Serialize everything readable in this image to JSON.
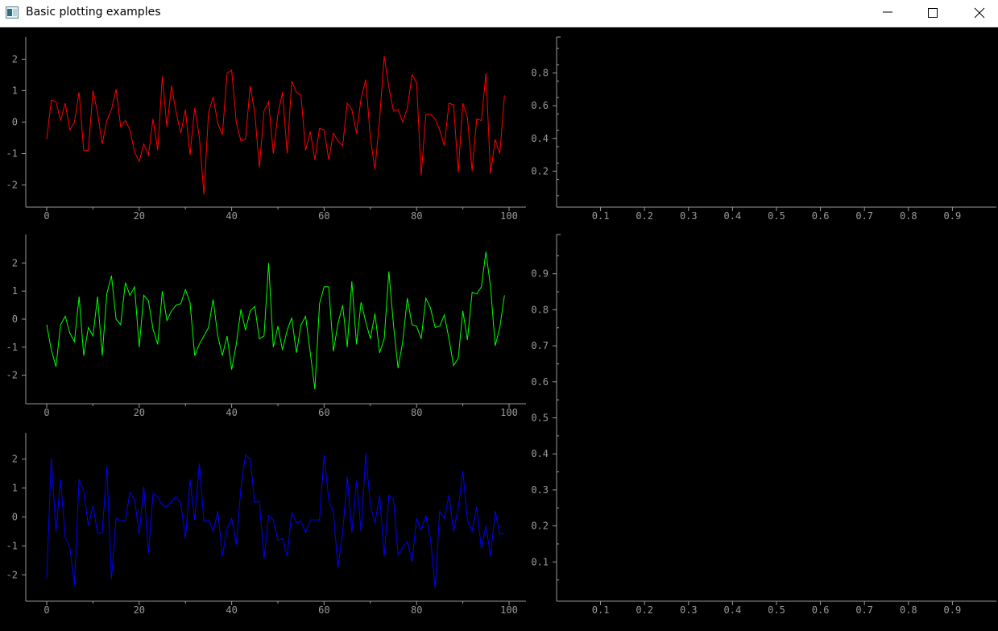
{
  "window": {
    "title": "Basic plotting examples"
  },
  "colors": {
    "background": "#000000",
    "axis": "#9a9a9a",
    "red": "#ff0000",
    "green": "#00ff00",
    "blue": "#0000ff"
  },
  "chart_data": [
    {
      "type": "line",
      "xlim": [
        0,
        100
      ],
      "ylim": [
        -2.6,
        2.6
      ],
      "x_ticks": [
        "0",
        "20",
        "40",
        "60",
        "80",
        "100"
      ],
      "y_ticks": [
        "2",
        "1",
        "0",
        "-1",
        "-2"
      ],
      "series": [
        {
          "color": "#ff0000",
          "x": [
            0,
            1,
            2,
            3,
            4,
            5,
            6,
            7,
            8,
            9,
            10,
            11,
            12,
            13,
            14,
            15,
            16,
            17,
            18,
            19,
            20,
            21,
            22,
            23,
            24,
            25,
            26,
            27,
            28,
            29,
            30,
            31,
            32,
            33,
            34,
            35,
            36,
            37,
            38,
            39,
            40,
            41,
            42,
            43,
            44,
            45,
            46,
            47,
            48,
            49,
            50,
            51,
            52,
            53,
            54,
            55,
            56,
            57,
            58,
            59,
            60,
            61,
            62,
            63,
            64,
            65,
            66,
            67,
            68,
            69,
            70,
            71,
            72,
            73,
            74,
            75,
            76,
            77,
            78,
            79,
            80,
            81,
            82,
            83,
            84,
            85,
            86,
            87,
            88,
            89,
            90,
            91,
            92,
            93,
            94,
            95,
            96,
            97,
            98,
            99
          ],
          "values": [
            -0.55,
            0.7,
            0.65,
            0.05,
            0.6,
            -0.25,
            0.0,
            0.95,
            -0.9,
            -0.9,
            1.0,
            0.3,
            -0.7,
            0.05,
            0.4,
            1.05,
            -0.15,
            0.05,
            -0.25,
            -0.95,
            -1.25,
            -0.7,
            -1.05,
            0.1,
            -0.9,
            1.45,
            -0.15,
            1.15,
            0.3,
            -0.35,
            0.4,
            -1.05,
            0.45,
            -0.45,
            -2.3,
            0.3,
            0.8,
            -0.05,
            -0.4,
            1.55,
            1.65,
            0.0,
            -0.6,
            -0.55,
            1.15,
            0.3,
            -1.45,
            0.35,
            0.65,
            -1.0,
            0.25,
            0.95,
            -1.0,
            1.3,
            0.95,
            0.85,
            -0.9,
            -0.3,
            -1.2,
            -0.2,
            -0.25,
            -1.2,
            -0.35,
            -0.6,
            -0.75,
            0.6,
            0.4,
            -0.35,
            0.75,
            1.35,
            -0.5,
            -1.5,
            0.1,
            2.1,
            1.1,
            0.35,
            0.4,
            0.0,
            0.45,
            1.5,
            1.25,
            -1.7,
            0.25,
            0.25,
            0.1,
            -0.25,
            -0.75,
            0.6,
            0.55,
            -1.6,
            0.6,
            0.15,
            -1.55,
            0.1,
            0.05,
            1.55,
            -1.65,
            -0.55,
            -1.0,
            0.85
          ]
        }
      ]
    },
    {
      "type": "line",
      "xlim": [
        0,
        100
      ],
      "ylim": [
        -2.9,
        2.9
      ],
      "x_ticks": [
        "0",
        "20",
        "40",
        "60",
        "80",
        "100"
      ],
      "y_ticks": [
        "2",
        "1",
        "0",
        "-1",
        "-2"
      ],
      "series": [
        {
          "color": "#00ff00",
          "x": [
            0,
            1,
            2,
            3,
            4,
            5,
            6,
            7,
            8,
            9,
            10,
            11,
            12,
            13,
            14,
            15,
            16,
            17,
            18,
            19,
            20,
            21,
            22,
            23,
            24,
            25,
            26,
            27,
            28,
            29,
            30,
            31,
            32,
            33,
            34,
            35,
            36,
            37,
            38,
            39,
            40,
            41,
            42,
            43,
            44,
            45,
            46,
            47,
            48,
            49,
            50,
            51,
            52,
            53,
            54,
            55,
            56,
            57,
            58,
            59,
            60,
            61,
            62,
            63,
            64,
            65,
            66,
            67,
            68,
            69,
            70,
            71,
            72,
            73,
            74,
            75,
            76,
            77,
            78,
            79,
            80,
            81,
            82,
            83,
            84,
            85,
            86,
            87,
            88,
            89,
            90,
            91,
            92,
            93,
            94,
            95,
            96,
            97,
            98,
            99
          ],
          "values": [
            -0.2,
            -1.1,
            -1.7,
            -0.2,
            0.1,
            -0.5,
            -0.8,
            0.8,
            -1.3,
            -0.3,
            -0.6,
            0.8,
            -1.3,
            0.9,
            1.55,
            0.0,
            -0.2,
            1.3,
            0.85,
            1.15,
            -1.0,
            0.85,
            0.65,
            -0.35,
            -0.9,
            1.0,
            -0.05,
            0.3,
            0.5,
            0.55,
            1.05,
            0.6,
            -1.3,
            -0.9,
            -0.6,
            -0.3,
            0.7,
            -0.6,
            -1.3,
            -0.6,
            -1.8,
            -0.9,
            0.35,
            -0.4,
            0.3,
            0.45,
            -0.7,
            -0.6,
            2.0,
            -1.0,
            -0.25,
            -1.1,
            -0.4,
            0.05,
            -1.2,
            -0.2,
            0.1,
            -1.2,
            -2.5,
            0.55,
            1.15,
            1.15,
            -1.15,
            -0.15,
            0.5,
            -1.0,
            1.35,
            -0.9,
            0.6,
            -0.1,
            -0.7,
            0.2,
            -1.2,
            -0.7,
            1.7,
            -0.2,
            -1.75,
            -0.8,
            0.75,
            -0.2,
            -0.25,
            -0.7,
            0.75,
            0.4,
            -0.3,
            -0.25,
            0.15,
            -0.7,
            -1.65,
            -1.4,
            0.3,
            -0.75,
            0.95,
            0.9,
            1.15,
            2.4,
            1.15,
            -0.95,
            -0.3,
            0.85
          ]
        }
      ]
    },
    {
      "type": "line",
      "xlim": [
        0,
        100
      ],
      "ylim": [
        -2.8,
        2.8
      ],
      "x_ticks": [
        "0",
        "20",
        "40",
        "60",
        "80",
        "100"
      ],
      "y_ticks": [
        "2",
        "1",
        "0",
        "-1",
        "-2"
      ],
      "series": [
        {
          "color": "#0000ff",
          "x": [
            0,
            1,
            2,
            3,
            4,
            5,
            6,
            7,
            8,
            9,
            10,
            11,
            12,
            13,
            14,
            15,
            16,
            17,
            18,
            19,
            20,
            21,
            22,
            23,
            24,
            25,
            26,
            27,
            28,
            29,
            30,
            31,
            32,
            33,
            34,
            35,
            36,
            37,
            38,
            39,
            40,
            41,
            42,
            43,
            44,
            45,
            46,
            47,
            48,
            49,
            50,
            51,
            52,
            53,
            54,
            55,
            56,
            57,
            58,
            59,
            60,
            61,
            62,
            63,
            64,
            65,
            66,
            67,
            68,
            69,
            70,
            71,
            72,
            73,
            74,
            75,
            76,
            77,
            78,
            79,
            80,
            81,
            82,
            83,
            84,
            85,
            86,
            87,
            88,
            89,
            90,
            91,
            92,
            93,
            94,
            95,
            96,
            97,
            98,
            99
          ],
          "values": [
            -2.1,
            2.05,
            -0.5,
            1.3,
            -0.7,
            -1.05,
            -2.35,
            1.3,
            0.9,
            -0.3,
            0.4,
            -0.55,
            -0.55,
            1.75,
            -2.15,
            -0.05,
            -0.15,
            -0.1,
            0.85,
            0.6,
            -0.6,
            1.05,
            -1.25,
            0.8,
            0.7,
            0.4,
            0.35,
            0.55,
            0.7,
            0.45,
            -0.75,
            1.3,
            -0.1,
            1.85,
            -0.15,
            -0.1,
            -0.5,
            0.2,
            -1.35,
            -0.4,
            -0.05,
            -0.95,
            1.0,
            2.15,
            2.0,
            0.5,
            0.55,
            -1.45,
            0.05,
            -0.1,
            -0.8,
            -0.75,
            -1.35,
            0.15,
            -0.2,
            -0.15,
            -0.55,
            -0.1,
            -0.1,
            -0.1,
            2.15,
            0.6,
            0.15,
            -1.75,
            -0.55,
            1.4,
            -0.55,
            1.25,
            -0.5,
            2.2,
            0.4,
            -0.2,
            0.75,
            -1.35,
            0.75,
            0.6,
            -1.3,
            -1.05,
            -0.85,
            -1.55,
            -0.05,
            -0.45,
            0.05,
            -0.75,
            -2.45,
            0.2,
            -0.05,
            0.75,
            -0.5,
            0.3,
            1.6,
            -0.1,
            -0.5,
            0.35,
            -1.1,
            -0.3,
            -1.35,
            0.2,
            -0.6,
            -0.55
          ]
        }
      ]
    },
    {
      "type": "line",
      "xlim": [
        0.0,
        1.0
      ],
      "ylim": [
        0.0,
        1.0
      ],
      "x_ticks": [
        "0.1",
        "0.2",
        "0.3",
        "0.4",
        "0.5",
        "0.6",
        "0.7",
        "0.8",
        "0.9"
      ],
      "y_ticks": [
        "0.8",
        "0.6",
        "0.4",
        "0.2"
      ],
      "series": []
    },
    {
      "type": "line",
      "xlim": [
        0.0,
        1.0
      ],
      "ylim": [
        0.0,
        1.0
      ],
      "x_ticks": [
        "0.1",
        "0.2",
        "0.3",
        "0.4",
        "0.5",
        "0.6",
        "0.7",
        "0.8",
        "0.9"
      ],
      "y_ticks": [
        "0.9",
        "0.8",
        "0.7",
        "0.6",
        "0.5",
        "0.4",
        "0.3",
        "0.2",
        "0.1"
      ],
      "series": []
    }
  ]
}
